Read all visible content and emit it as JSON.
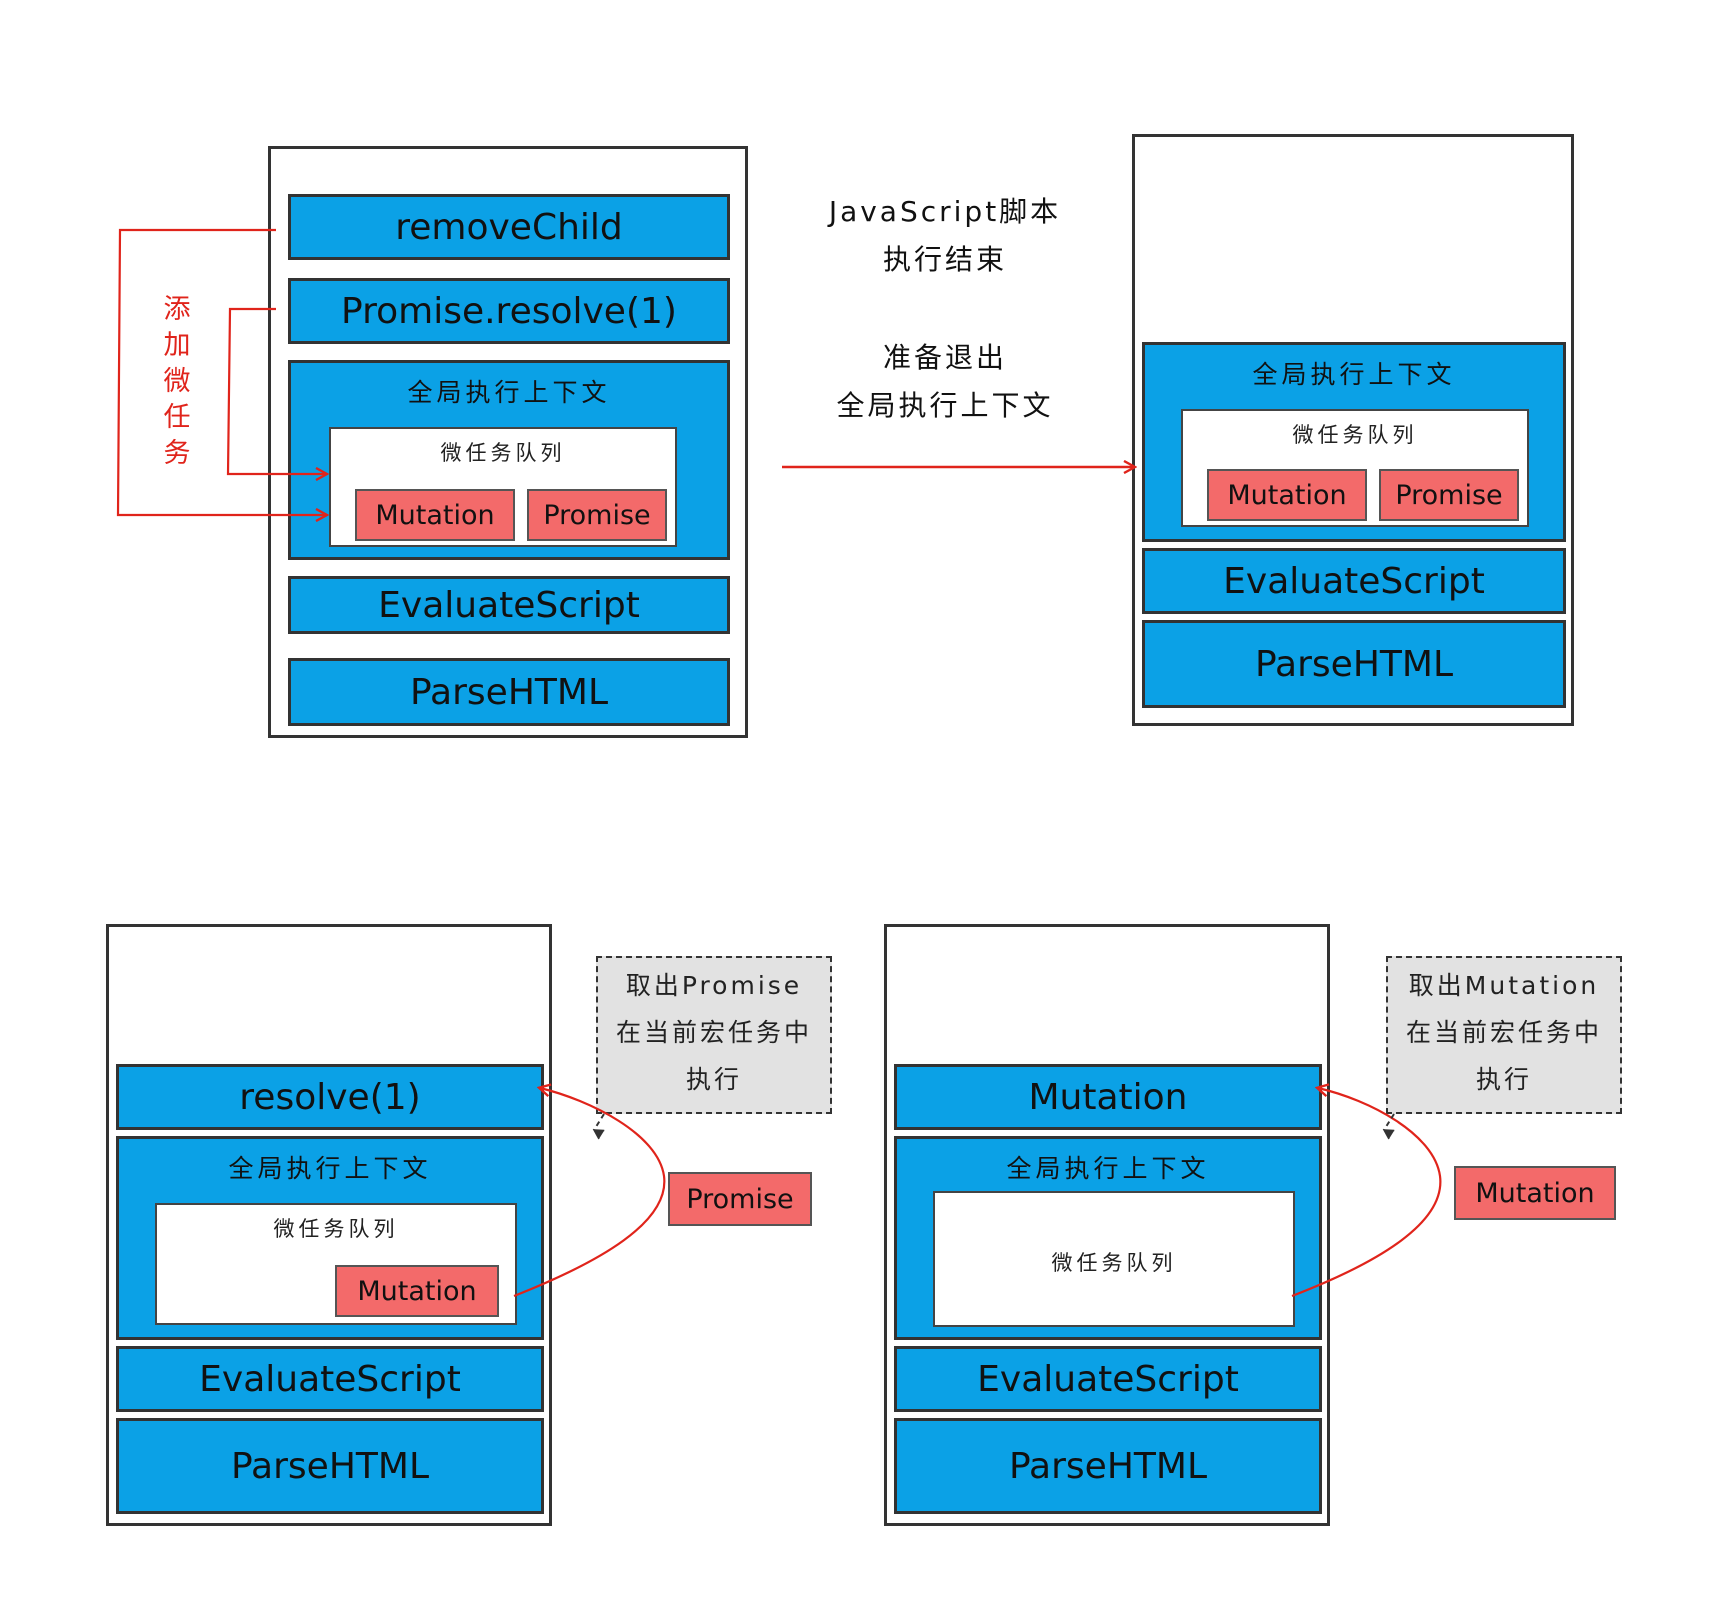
{
  "panel1": {
    "frames": [
      "removeChild",
      "Promise.resolve(1)",
      "EvaluateScript",
      "ParseHTML"
    ],
    "context_title": "全局执行上下文",
    "queue_title": "微任务队列",
    "tasks": [
      "Mutation",
      "Promise"
    ],
    "side_label": [
      "添",
      "加",
      "微",
      "任",
      "务"
    ]
  },
  "transition": {
    "line1": "JavaScript脚本",
    "line2": "执行结束",
    "line3": "准备退出",
    "line4": "全局执行上下文"
  },
  "panel2": {
    "context_title": "全局执行上下文",
    "queue_title": "微任务队列",
    "tasks": [
      "Mutation",
      "Promise"
    ],
    "frames": [
      "EvaluateScript",
      "ParseHTML"
    ]
  },
  "panel3": {
    "top_frame": "resolve(1)",
    "context_title": "全局执行上下文",
    "queue_title": "微任务队列",
    "tasks": [
      "Mutation"
    ],
    "frames": [
      "EvaluateScript",
      "ParseHTML"
    ],
    "moving_task": "Promise",
    "note": [
      "取出Promise",
      "在当前宏任务中",
      "执行"
    ]
  },
  "panel4": {
    "top_frame": "Mutation",
    "context_title": "全局执行上下文",
    "queue_title": "微任务队列",
    "frames": [
      "EvaluateScript",
      "ParseHTML"
    ],
    "moving_task": "Mutation",
    "note": [
      "取出Mutation",
      "在当前宏任务中",
      "执行"
    ]
  },
  "colors": {
    "frame_blue": "#0ba1e6",
    "task_red": "#f36a6a",
    "arrow_red": "#e0241b",
    "note_gray": "#e2e2e2"
  }
}
